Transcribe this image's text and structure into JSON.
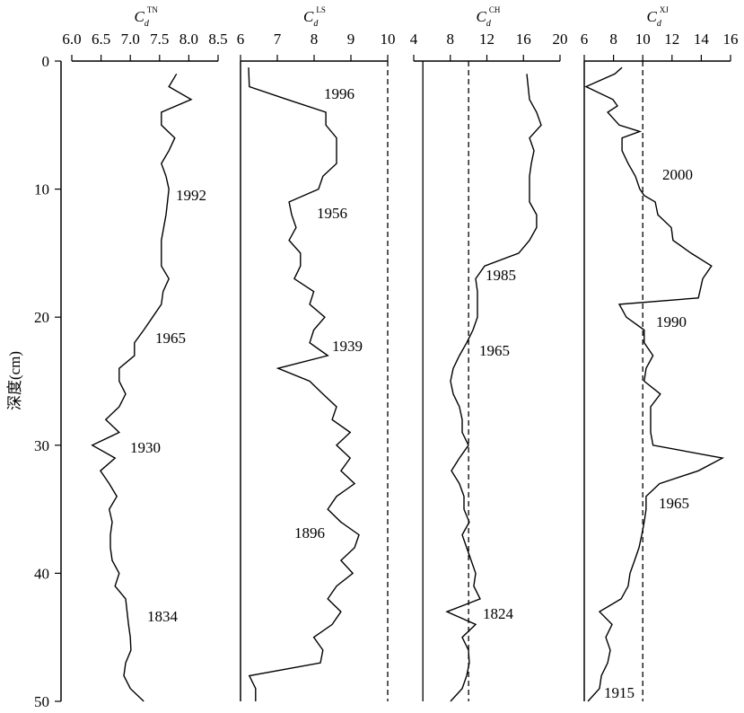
{
  "chart_data": [
    {
      "type": "line",
      "title": {
        "main": "C",
        "sub": "d",
        "sup": "TN"
      },
      "y_label": "深度(cm)",
      "xlim": [
        6,
        8.5
      ],
      "xticks": [
        {
          "value": 6,
          "label": "6.0"
        },
        6.5,
        {
          "value": 7,
          "label": "7.0"
        },
        7.5,
        {
          "value": 8,
          "label": "8.0"
        },
        8.5
      ],
      "ylim": [
        0,
        50
      ],
      "yticks": [
        0,
        10,
        20,
        30,
        40,
        50
      ],
      "y_inverted": true,
      "reference_lines": [],
      "series": [
        {
          "color": "#000000",
          "depth": [
            1,
            2,
            3,
            4,
            5,
            6,
            7,
            8,
            9,
            10,
            12,
            14,
            16,
            17,
            18,
            19,
            20,
            21,
            22,
            23,
            24,
            25,
            26,
            27,
            28,
            29,
            30,
            31,
            32,
            33,
            34,
            35,
            36,
            37,
            38,
            39,
            40,
            41,
            42,
            44,
            45,
            46,
            47,
            48,
            49,
            50
          ],
          "values": [
            7.79,
            7.66,
            8.04,
            7.53,
            7.53,
            7.76,
            7.66,
            7.53,
            7.61,
            7.66,
            7.61,
            7.53,
            7.53,
            7.66,
            7.56,
            7.53,
            7.38,
            7.23,
            7.07,
            7.07,
            6.81,
            6.81,
            6.92,
            6.81,
            6.58,
            6.81,
            6.35,
            6.74,
            6.49,
            6.64,
            6.77,
            6.64,
            6.69,
            6.66,
            6.66,
            6.69,
            6.81,
            6.74,
            6.92,
            6.97,
            7.0,
            7.01,
            6.92,
            6.89,
            7.0,
            7.23
          ]
        }
      ],
      "annotations": [
        "1992",
        "1965",
        "1930",
        "1834"
      ]
    },
    {
      "type": "line",
      "title": {
        "main": "C",
        "sub": "d",
        "sup": "LS"
      },
      "xlim": [
        6,
        10
      ],
      "xticks": [
        6,
        7,
        8,
        9,
        10
      ],
      "ylim": [
        0,
        50
      ],
      "y_inverted": true,
      "reference_lines": [
        {
          "value": 10,
          "style": "dashed"
        }
      ],
      "series": [
        {
          "color": "#000000",
          "depth": [
            0.5,
            2,
            3,
            4,
            5,
            6,
            7,
            8,
            9,
            10,
            11,
            12,
            13,
            14,
            15,
            16,
            17,
            18,
            19,
            20,
            21,
            22,
            23,
            24,
            25,
            26,
            27,
            28,
            29,
            30,
            31,
            32,
            33,
            34,
            35,
            36,
            37,
            38,
            39,
            40,
            41,
            42,
            43,
            44,
            45,
            46,
            47,
            48,
            49,
            50
          ],
          "values": [
            6.22,
            6.24,
            7.27,
            8.32,
            8.32,
            8.61,
            8.61,
            8.61,
            8.24,
            8.12,
            7.32,
            7.39,
            7.51,
            7.32,
            7.63,
            7.63,
            7.46,
            7.99,
            7.88,
            8.29,
            7.99,
            7.88,
            8.37,
            7.02,
            7.88,
            8.24,
            8.61,
            8.49,
            8.98,
            8.61,
            8.98,
            8.73,
            9.1,
            8.61,
            8.37,
            8.73,
            9.22,
            9.1,
            8.73,
            9.05,
            8.61,
            8.37,
            8.73,
            8.49,
            7.99,
            8.24,
            8.17,
            6.24,
            6.41,
            6.41
          ]
        }
      ],
      "annotations": [
        "1996",
        "1956",
        "1939",
        "1896"
      ]
    },
    {
      "type": "line",
      "title": {
        "main": "C",
        "sub": "d",
        "sup": "CH"
      },
      "xlim": [
        4,
        20
      ],
      "xticks": [
        4,
        8,
        12,
        16,
        20
      ],
      "ylim": [
        0,
        50
      ],
      "y_inverted": true,
      "reference_lines": [
        {
          "value": 5,
          "style": "solid"
        },
        {
          "value": 10,
          "style": "dashed"
        }
      ],
      "series": [
        {
          "color": "#000000",
          "depth": [
            1,
            3,
            4,
            5,
            6,
            7,
            8,
            9,
            10,
            11,
            12,
            13,
            14,
            15,
            16,
            17,
            18,
            20,
            21,
            22,
            23,
            24,
            25,
            26,
            27,
            28,
            29,
            30,
            31,
            32,
            33,
            34,
            35,
            36,
            37,
            38,
            39,
            40,
            41,
            42,
            43,
            44,
            45,
            46,
            47,
            48,
            49,
            50
          ],
          "values": [
            16.37,
            16.66,
            17.44,
            17.94,
            16.66,
            17.15,
            16.86,
            16.66,
            16.66,
            16.66,
            17.44,
            17.44,
            16.66,
            15.48,
            11.75,
            10.77,
            10.97,
            10.97,
            10.48,
            9.79,
            9.0,
            8.32,
            8.02,
            8.32,
            9.0,
            9.3,
            9.3,
            9.99,
            9.0,
            8.12,
            9.0,
            9.5,
            9.5,
            10.08,
            9.3,
            9.79,
            10.28,
            10.77,
            10.57,
            11.26,
            7.63,
            10.77,
            9.3,
            9.99,
            10.08,
            9.79,
            9.3,
            8.02
          ]
        }
      ],
      "annotations": [
        "1985",
        "1965",
        "1824"
      ]
    },
    {
      "type": "line",
      "title": {
        "main": "C",
        "sub": "d",
        "sup": "XJ"
      },
      "xlim": [
        6,
        16
      ],
      "xticks": [
        6,
        8,
        10,
        12,
        14,
        16
      ],
      "ylim": [
        0,
        50
      ],
      "y_inverted": true,
      "reference_lines": [
        {
          "value": 10,
          "style": "dashed"
        }
      ],
      "series": [
        {
          "color": "#000000",
          "depth": [
            0.5,
            1,
            2,
            3,
            3.5,
            4,
            5,
            5.5,
            6,
            7,
            8,
            9,
            10,
            10.5,
            11,
            12,
            13,
            14,
            15,
            16,
            17,
            18,
            18.5,
            19,
            20,
            21,
            22,
            23,
            24,
            25,
            26,
            27,
            28,
            29,
            30,
            31,
            32,
            33,
            34,
            35,
            36,
            37,
            38,
            39,
            40,
            41,
            42,
            43,
            44,
            45,
            46,
            47,
            48,
            49,
            50
          ],
          "values": [
            8.58,
            8.09,
            6.12,
            7.96,
            8.27,
            7.6,
            8.39,
            9.8,
            8.58,
            8.58,
            9.0,
            9.5,
            9.8,
            10.1,
            10.85,
            11.03,
            11.95,
            12.07,
            13.3,
            14.7,
            14.1,
            13.9,
            13.8,
            8.39,
            8.88,
            10.1,
            10.1,
            10.7,
            10.23,
            10.1,
            11.2,
            10.54,
            10.54,
            10.54,
            10.7,
            15.45,
            13.8,
            11.15,
            10.23,
            10.23,
            10.1,
            9.93,
            9.74,
            9.44,
            9.13,
            9.0,
            8.52,
            7.04,
            7.9,
            7.47,
            7.78,
            7.6,
            7.17,
            7.04,
            6.25
          ]
        }
      ],
      "annotations": [
        "2000",
        "1990",
        "1965",
        "1915"
      ]
    }
  ]
}
